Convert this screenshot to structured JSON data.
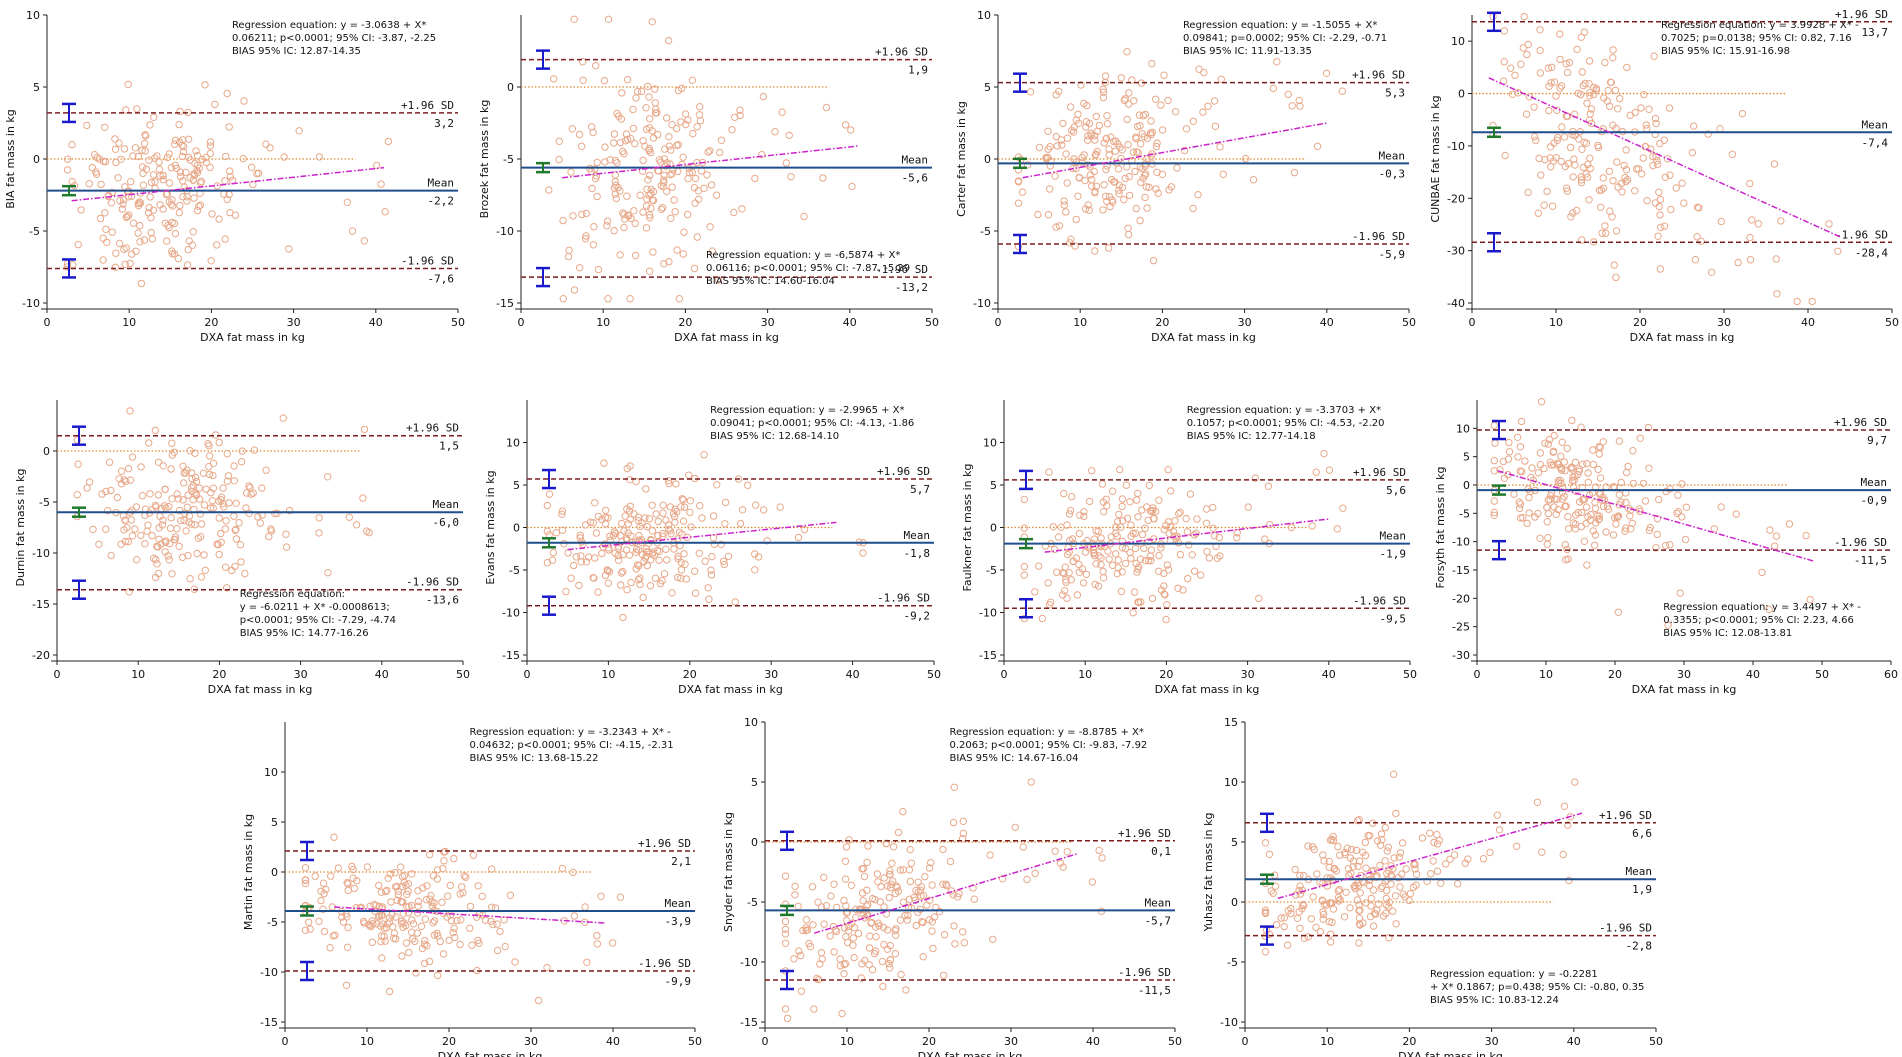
{
  "figure": {
    "colors": {
      "points": "#e8a98a",
      "limit_line": "#7a1f1f",
      "mean_line": "#1f4e8c",
      "zero_line": "#e08a2c",
      "regression_line": "#cc22cc",
      "ci_limits": "#1a1acc",
      "ci_mean": "#1f7a2c",
      "axis": "#222222",
      "text": "#111111"
    }
  },
  "chart_data": [
    {
      "type": "scatter",
      "title": "",
      "xlabel": "DXA fat mass in kg",
      "ylabel": "BIA fat mass in kg",
      "xlim": [
        0,
        50
      ],
      "ylim": [
        -10,
        10
      ],
      "xticks": [
        0,
        10,
        20,
        30,
        40,
        50
      ],
      "yticks": [
        -10,
        -5,
        0,
        5,
        10
      ],
      "upper": 3.2,
      "mean": -2.2,
      "lower": -7.6,
      "upper_label": "+1.96 SD",
      "mean_label": "Mean",
      "lower_label": "-1.96 SD",
      "upper_value": "3,2",
      "mean_value": "-2,2",
      "lower_value": "-7,6",
      "reg": [
        [
          3,
          -2.9
        ],
        [
          41,
          -0.6
        ]
      ],
      "cloud": {
        "xc": 13,
        "xs": 5.5,
        "yc": -2.2,
        "ys": 2.8,
        "xmax": 42
      },
      "annotation": [
        "Regression equation: y = -3.0638  + X*",
        "0.06211; p<0.0001; 95% CI: -3.87, -2.25",
        "BIAS 95% IC: 12.87-14.35"
      ],
      "annotation_pos": "top-right"
    },
    {
      "type": "scatter",
      "title": "",
      "xlabel": "DXA fat mass in kg",
      "ylabel": "Brozek  fat mass in kg",
      "xlim": [
        0,
        50
      ],
      "ylim": [
        -15,
        5
      ],
      "xticks": [
        0,
        10,
        20,
        30,
        40,
        50
      ],
      "yticks": [
        -15,
        -10,
        -5,
        0
      ],
      "upper": 1.9,
      "mean": -5.6,
      "lower": -13.2,
      "upper_label": "+1.96 SD",
      "mean_label": "Mean",
      "lower_label": "-1.96 SD",
      "upper_value": "1,9",
      "mean_value": "-5,6",
      "lower_value": "-13,2",
      "reg": [
        [
          5,
          -6.3
        ],
        [
          41,
          -4.1
        ]
      ],
      "cloud": {
        "xc": 15,
        "xs": 6,
        "yc": -5.6,
        "ys": 3.6,
        "xmax": 42
      },
      "annotation": [
        "Regression equation: y = -6,5874  + X*",
        "0.06116; p<0.0001; 95% CI: -7.87, -5.29",
        "BIAS 95% IC: 14.60-16.04"
      ],
      "annotation_pos": "bottom-right"
    },
    {
      "type": "scatter",
      "title": "",
      "xlabel": "DXA fat mass in kg",
      "ylabel": "Carter  fat mass in kg",
      "xlim": [
        0,
        50
      ],
      "ylim": [
        -10,
        10
      ],
      "xticks": [
        0,
        10,
        20,
        30,
        40,
        50
      ],
      "yticks": [
        -10,
        -5,
        0,
        5,
        10
      ],
      "upper": 5.3,
      "mean": -0.3,
      "lower": -5.9,
      "upper_label": "+1.96 SD",
      "mean_label": "Mean",
      "lower_label": "-1.96 SD",
      "upper_value": "5,3",
      "mean_value": "-0,3",
      "lower_value": "-5,9",
      "reg": [
        [
          3,
          -1.3
        ],
        [
          40,
          2.5
        ]
      ],
      "cloud": {
        "xc": 13,
        "xs": 5.5,
        "yc": 0.2,
        "ys": 2.6,
        "xmax": 42
      },
      "annotation": [
        "Regression equation: y = -1.5055 + X*",
        "0.09841; p=0.0002; 95% CI: -2.29, -0.71",
        "BIAS 95% IC: 11.91-13.35"
      ],
      "annotation_pos": "top-right"
    },
    {
      "type": "scatter",
      "title": "",
      "xlabel": "DXA fat mass in kg",
      "ylabel": "CUNBAE  fat mass in kg",
      "xlim": [
        0,
        50
      ],
      "ylim": [
        -40,
        15
      ],
      "xticks": [
        0,
        10,
        20,
        30,
        40,
        50
      ],
      "yticks": [
        -40,
        -30,
        -20,
        -10,
        0,
        10
      ],
      "upper": 13.7,
      "mean": -7.4,
      "lower": -28.4,
      "upper_label": "+1.96 SD",
      "mean_label": "Mean",
      "lower_label": "-1.96 SD",
      "upper_value": "13,7",
      "mean_value": "-7,4",
      "lower_value": "-28,4",
      "reg": [
        [
          2,
          3
        ],
        [
          44,
          -27.5
        ]
      ],
      "cloud": {
        "xc": 15,
        "xs": 6,
        "yc": -7.4,
        "ys": 9,
        "xmax": 44
      },
      "annotation": [
        "Regression equation: y = 3.9928  + X* -",
        "0.7025; p=0.0138; 95% CI: 0.82, 7.16",
        "BIAS 95% IC: 15.91-16.98"
      ],
      "annotation_pos": "top-right"
    },
    {
      "type": "scatter",
      "title": "",
      "xlabel": "DXA fat mass in kg",
      "ylabel": "Durnin  fat mass in kg",
      "xlim": [
        0,
        50
      ],
      "ylim": [
        -20,
        5
      ],
      "xticks": [
        0,
        10,
        20,
        30,
        40,
        50
      ],
      "yticks": [
        -20,
        -15,
        -10,
        -5,
        0
      ],
      "upper": 1.5,
      "mean": -6.0,
      "lower": -13.6,
      "upper_label": "+1.96 SD",
      "mean_label": "Mean",
      "lower_label": "-1.96 SD",
      "upper_value": "1,5",
      "mean_value": "-6,0",
      "lower_value": "-13,6",
      "reg": null,
      "cloud": {
        "xc": 15,
        "xs": 6,
        "yc": -6.0,
        "ys": 3.8,
        "xmax": 42
      },
      "annotation": [
        "Regression equation:",
        "y = -6.0211  + X* -0.0008613;",
        "p<0.0001; 95% CI: -7.29, -4.74",
        "BIAS 95% IC: 14.77-16.26"
      ],
      "annotation_pos": "bottom-right"
    },
    {
      "type": "scatter",
      "title": "",
      "xlabel": "DXA fat mass in kg",
      "ylabel": "Evans  fat mass in kg",
      "xlim": [
        0,
        50
      ],
      "ylim": [
        -15,
        15
      ],
      "xticks": [
        0,
        10,
        20,
        30,
        40,
        50
      ],
      "yticks": [
        -15,
        -10,
        -5,
        0,
        5,
        10
      ],
      "upper": 5.7,
      "mean": -1.8,
      "lower": -9.2,
      "upper_label": "+1.96 SD",
      "mean_label": "Mean",
      "lower_label": "-1.96 SD",
      "upper_value": "5,7",
      "mean_value": "-1,8",
      "lower_value": "-9,2",
      "reg": [
        [
          5,
          -2.6
        ],
        [
          38,
          0.6
        ]
      ],
      "cloud": {
        "xc": 14,
        "xs": 6,
        "yc": -1.8,
        "ys": 3.6,
        "xmax": 42
      },
      "annotation": [
        "Regression equation: y = -2.9965  + X*",
        "0.09041; p<0.0001; 95% CI: -4.13, -1.86",
        "BIAS 95% IC: 12.68-14.10"
      ],
      "annotation_pos": "top-right"
    },
    {
      "type": "scatter",
      "title": "",
      "xlabel": "DXA fat mass in kg",
      "ylabel": "Faulkner  fat mass in kg",
      "xlim": [
        0,
        50
      ],
      "ylim": [
        -15,
        15
      ],
      "xticks": [
        0,
        10,
        20,
        30,
        40,
        50
      ],
      "yticks": [
        -15,
        -10,
        -5,
        0,
        5,
        10
      ],
      "upper": 5.6,
      "mean": -1.9,
      "lower": -9.5,
      "upper_label": "+1.96 SD",
      "mean_label": "Mean",
      "lower_label": "-1.96 SD",
      "upper_value": "5,6",
      "mean_value": "-1,9",
      "lower_value": "-9,5",
      "reg": [
        [
          5,
          -2.9
        ],
        [
          40,
          1
        ]
      ],
      "cloud": {
        "xc": 14,
        "xs": 6,
        "yc": -1.9,
        "ys": 3.6,
        "xmax": 42
      },
      "annotation": [
        "Regression equation: y = -3.3703  + X*",
        "0.1057; p<0.0001; 95% CI: -4.53, -2.20",
        "BIAS 95% IC: 12.77-14.18"
      ],
      "annotation_pos": "top-right"
    },
    {
      "type": "scatter",
      "title": "",
      "xlabel": "DXA fat mass in kg",
      "ylabel": "Forsyth  fat mass in kg",
      "xlim": [
        0,
        60
      ],
      "ylim": [
        -30,
        15
      ],
      "xticks": [
        0,
        10,
        20,
        30,
        40,
        50,
        60
      ],
      "yticks": [
        -30,
        -25,
        -20,
        -15,
        -10,
        -5,
        0,
        5,
        10
      ],
      "upper": 9.7,
      "mean": -0.9,
      "lower": -11.5,
      "upper_label": "+1.96 SD",
      "mean_label": "Mean",
      "lower_label": "-1.96 SD",
      "upper_value": "9,7",
      "mean_value": "-0,9",
      "lower_value": "-11,5",
      "reg": [
        [
          3,
          2.5
        ],
        [
          49,
          -13.5
        ]
      ],
      "cloud": {
        "xc": 14,
        "xs": 6.5,
        "yc": -0.9,
        "ys": 5,
        "xmax": 50
      },
      "annotation": [
        "Regression equation: y = 3.4497  + X* -",
        "0.3355; p<0.0001; 95% CI: 2.23, 4.66",
        "BIAS 95% IC: 12.08-13.81"
      ],
      "annotation_pos": "bottom-right"
    },
    {
      "type": "scatter",
      "title": "",
      "xlabel": "DXA fat mass in kg",
      "ylabel": "Martin  fat mass in kg",
      "xlim": [
        0,
        50
      ],
      "ylim": [
        -15,
        15
      ],
      "xticks": [
        0,
        10,
        20,
        30,
        40,
        50
      ],
      "yticks": [
        -15,
        -10,
        -5,
        0,
        5,
        10
      ],
      "upper": 2.1,
      "mean": -3.9,
      "lower": -9.9,
      "upper_label": "+1.96 SD",
      "mean_label": "Mean",
      "lower_label": "-1.96 SD",
      "upper_value": "2,1",
      "mean_value": "-3,9",
      "lower_value": "-9,9",
      "reg": [
        [
          6,
          -3.5
        ],
        [
          39,
          -5.1
        ]
      ],
      "cloud": {
        "xc": 14,
        "xs": 6,
        "yc": -3.9,
        "ys": 2.8,
        "xmax": 42
      },
      "annotation": [
        "Regression equation: y = -3.2343  + X* -",
        "0.04632; p<0.0001; 95% CI: -4.15, -2.31",
        "BIAS 95% IC: 13.68-15.22"
      ],
      "annotation_pos": "top-right"
    },
    {
      "type": "scatter",
      "title": "",
      "xlabel": "DXA fat mass in kg",
      "ylabel": "Snyder  fat mass in kg",
      "xlim": [
        0,
        50
      ],
      "ylim": [
        -15,
        10
      ],
      "xticks": [
        0,
        10,
        20,
        30,
        40,
        50
      ],
      "yticks": [
        -15,
        -10,
        -5,
        0,
        5,
        10
      ],
      "upper": 0.1,
      "mean": -5.7,
      "lower": -11.5,
      "upper_label": "+1.96 SD",
      "mean_label": "Mean",
      "lower_label": "-1.96 SD",
      "upper_value": "0,1",
      "mean_value": "-5,7",
      "lower_value": "-11,5",
      "reg": [
        [
          6,
          -7.6
        ],
        [
          38,
          -1
        ]
      ],
      "cloud": {
        "xc": 14,
        "xs": 6,
        "yc": -5.7,
        "ys": 2.9,
        "xmax": 42
      },
      "annotation": [
        "Regression equation: y = -8.8785  + X*",
        "0.2063; p<0.0001; 95% CI: -9.83, -7.92",
        "BIAS 95% IC: 14.67-16.04"
      ],
      "annotation_pos": "top-right"
    },
    {
      "type": "scatter",
      "title": "",
      "xlabel": "DXA fat mass in kg",
      "ylabel": "Yuhasz  fat mass in kg",
      "xlim": [
        0,
        50
      ],
      "ylim": [
        -10,
        15
      ],
      "xticks": [
        0,
        10,
        20,
        30,
        40,
        50
      ],
      "yticks": [
        -10,
        -5,
        0,
        5,
        10,
        15
      ],
      "upper": 6.6,
      "mean": 1.9,
      "lower": -2.8,
      "upper_label": "+1.96 SD",
      "mean_label": "Mean",
      "lower_label": "-1.96 SD",
      "upper_value": "6,6",
      "mean_value": "1,9",
      "lower_value": "-2,8",
      "reg": [
        [
          4,
          0.3
        ],
        [
          41,
          7.4
        ]
      ],
      "cloud": {
        "xc": 13,
        "xs": 5.5,
        "yc": 1.9,
        "ys": 2.3,
        "xmax": 42
      },
      "annotation": [
        "Regression equation: y = -0.2281",
        "+ X* 0.1867; p=0.438; 95% CI: -0.80, 0.35",
        "BIAS 95% IC: 10.83-12.24"
      ],
      "annotation_pos": "bottom-right"
    }
  ]
}
